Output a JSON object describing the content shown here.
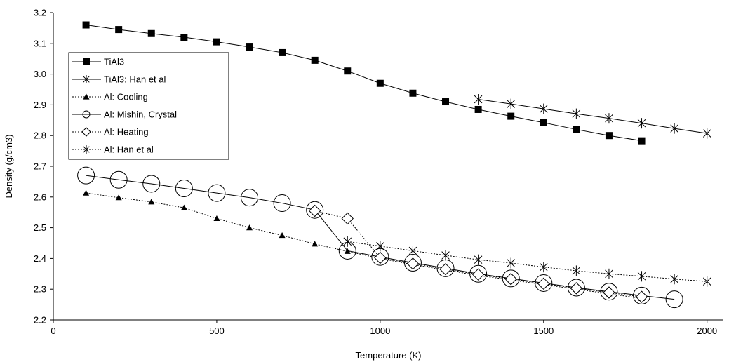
{
  "chart_data": {
    "type": "line",
    "xlabel": "Temperature (K)",
    "ylabel": "Density (g/cm3)",
    "xlim": [
      0,
      2050
    ],
    "ylim": [
      2.2,
      3.2
    ],
    "xticks": [
      "0",
      "500",
      "1000",
      "1500",
      "2000"
    ],
    "yticks": [
      "2.2",
      "2.3",
      "2.4",
      "2.5",
      "2.6",
      "2.7",
      "2.8",
      "2.9",
      "3.0",
      "3.1",
      "3.2"
    ],
    "grid": false,
    "legend_position": "top-left",
    "series": [
      {
        "name": "TiAl3",
        "marker": "square",
        "line": "solid",
        "x": [
          100,
          200,
          300,
          400,
          500,
          600,
          700,
          800,
          900,
          1000,
          1100,
          1200,
          1300,
          1400,
          1500,
          1600,
          1700,
          1800
        ],
        "y": [
          3.16,
          3.145,
          3.132,
          3.12,
          3.105,
          3.088,
          3.07,
          3.045,
          3.01,
          2.97,
          2.938,
          2.91,
          2.885,
          2.863,
          2.842,
          2.82,
          2.8,
          2.783
        ]
      },
      {
        "name": "TiAl3: Han et al",
        "marker": "asterisk",
        "line": "solid",
        "x": [
          1300,
          1400,
          1500,
          1600,
          1700,
          1800,
          1900,
          2000
        ],
        "y": [
          2.918,
          2.903,
          2.887,
          2.871,
          2.856,
          2.84,
          2.823,
          2.807
        ]
      },
      {
        "name": "Al: Cooling",
        "marker": "triangle",
        "line": "dotted",
        "x": [
          100,
          200,
          300,
          400,
          500,
          600,
          700,
          800,
          900,
          1000,
          1100,
          1200,
          1300,
          1400,
          1500,
          1600,
          1700,
          1800
        ],
        "y": [
          2.613,
          2.598,
          2.584,
          2.565,
          2.53,
          2.5,
          2.475,
          2.447,
          2.423,
          2.4,
          2.38,
          2.362,
          2.345,
          2.33,
          2.315,
          2.3,
          2.285,
          2.27
        ]
      },
      {
        "name": "Al: Mishin, Crystal",
        "marker": "circle",
        "line": "solid",
        "x": [
          100,
          200,
          300,
          400,
          500,
          600,
          700,
          800,
          900,
          1000,
          1100,
          1200,
          1300,
          1400,
          1500,
          1600,
          1700,
          1800,
          1900
        ],
        "y": [
          2.67,
          2.656,
          2.643,
          2.628,
          2.613,
          2.598,
          2.58,
          2.558,
          2.425,
          2.405,
          2.386,
          2.368,
          2.35,
          2.335,
          2.32,
          2.305,
          2.292,
          2.279,
          2.267
        ]
      },
      {
        "name": "Al: Heating",
        "marker": "diamond",
        "line": "dotted",
        "x": [
          800,
          900,
          1000,
          1100,
          1200,
          1300,
          1400,
          1500,
          1600,
          1700,
          1800
        ],
        "y": [
          2.555,
          2.53,
          2.402,
          2.383,
          2.365,
          2.348,
          2.333,
          2.318,
          2.303,
          2.289,
          2.275
        ]
      },
      {
        "name": "Al: Han et al",
        "marker": "asterisk",
        "line": "dotted",
        "x": [
          900,
          1000,
          1100,
          1200,
          1300,
          1400,
          1500,
          1600,
          1700,
          1800,
          1900,
          2000
        ],
        "y": [
          2.455,
          2.44,
          2.425,
          2.41,
          2.396,
          2.385,
          2.372,
          2.36,
          2.35,
          2.342,
          2.333,
          2.325
        ]
      }
    ]
  }
}
